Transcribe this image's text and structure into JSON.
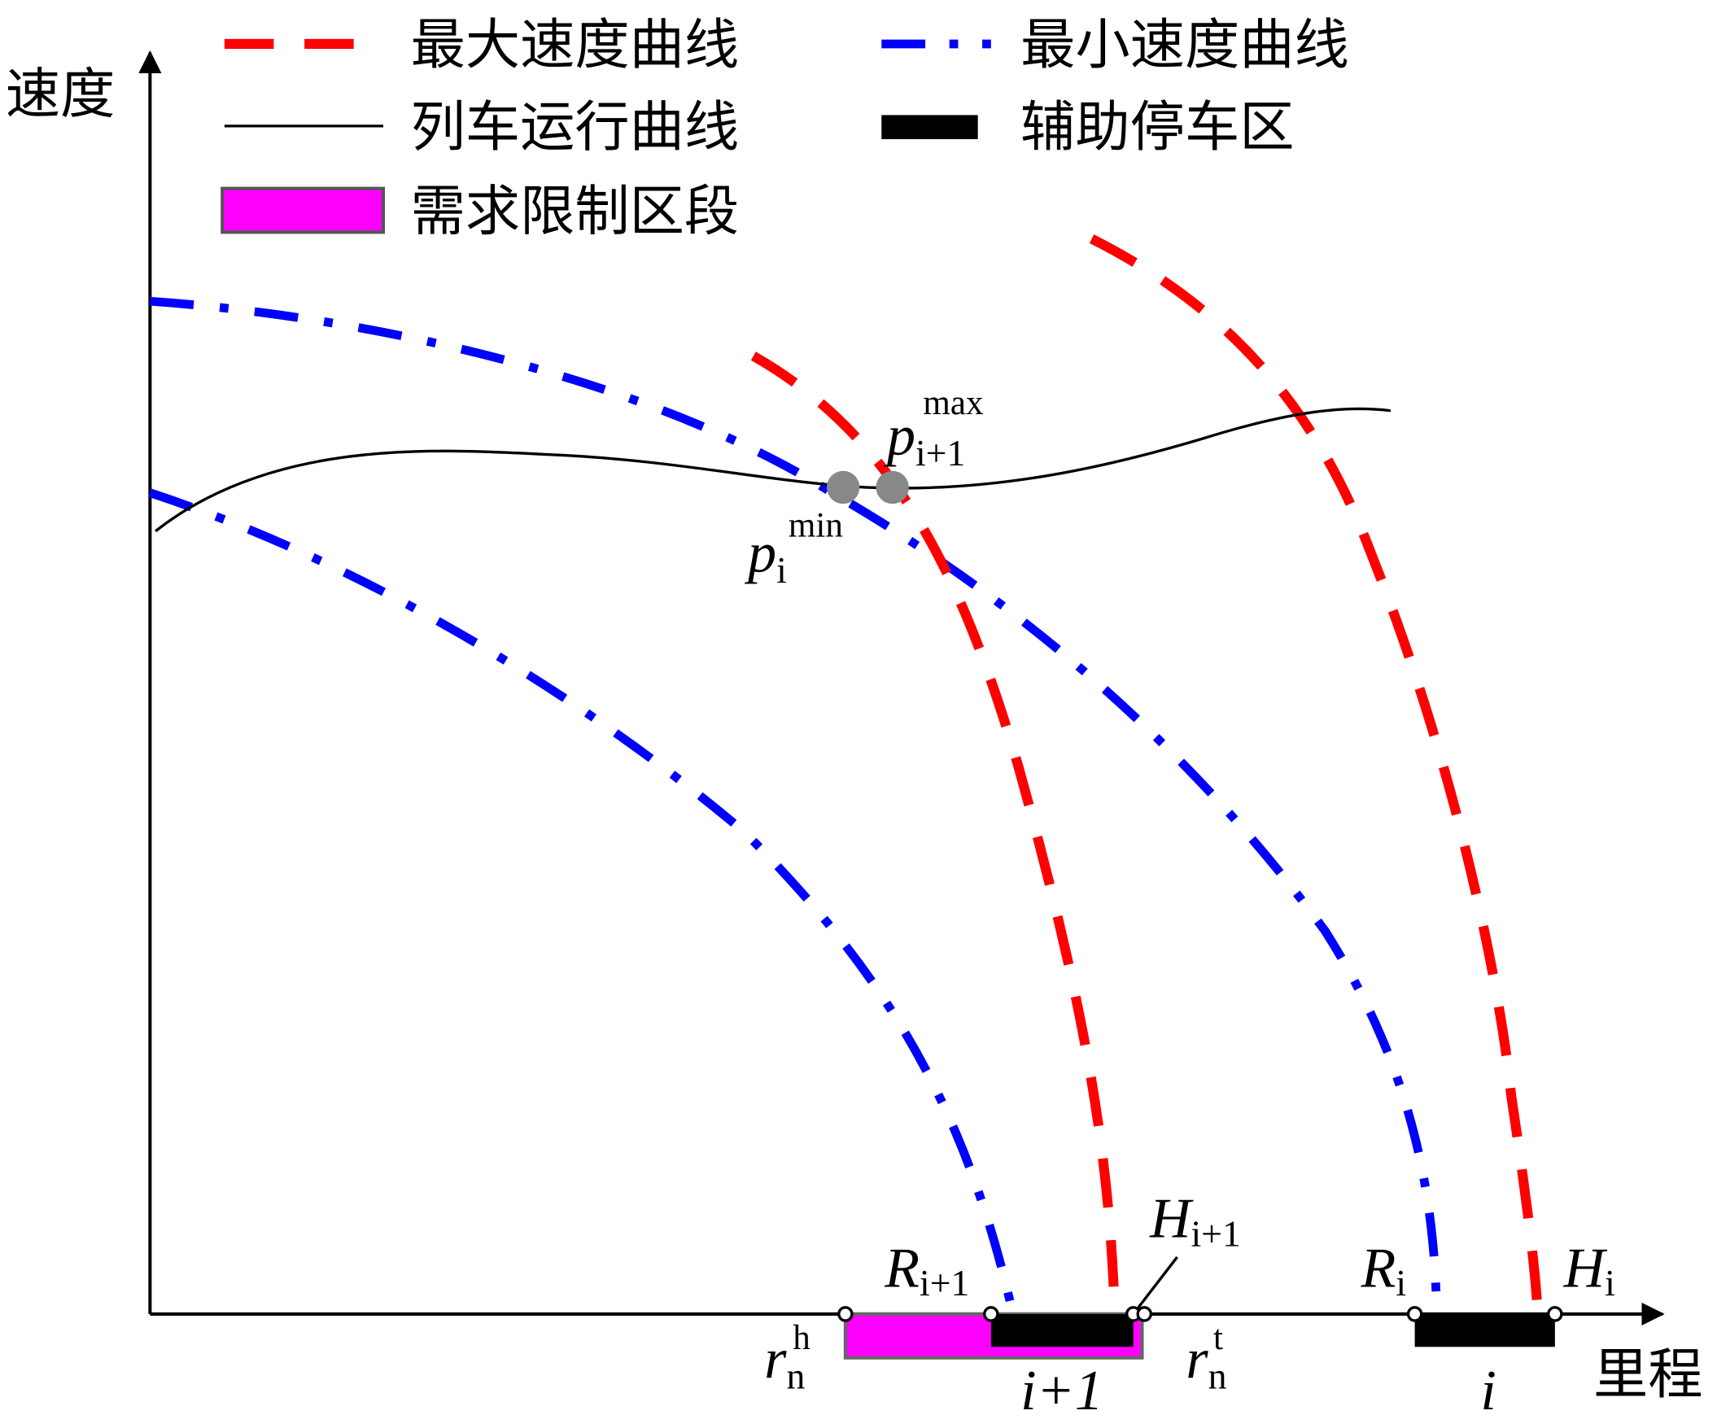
{
  "axes": {
    "y_label": "速度",
    "x_label": "里程"
  },
  "legend": [
    "最大速度曲线",
    "最小速度曲线",
    "列车运行曲线",
    "辅助停车区",
    "需求限制区段"
  ],
  "points": {
    "p_max": {
      "base": "p",
      "sub": "i+1",
      "sup": "max"
    },
    "p_min": {
      "base": "p",
      "sub": "i",
      "sup": "min"
    }
  },
  "markers": {
    "R_next": {
      "base": "R",
      "sub": "i+1"
    },
    "H_next": {
      "base": "H",
      "sub": "i+1"
    },
    "R_cur": {
      "base": "R",
      "sub": "i"
    },
    "H_cur": {
      "base": "H",
      "sub": "i"
    },
    "r_head": {
      "base": "r",
      "sub": "n",
      "sup": "h"
    },
    "r_tail": {
      "base": "r",
      "sub": "n",
      "sup": "t"
    }
  },
  "zones": [
    "i+1",
    "i"
  ]
}
